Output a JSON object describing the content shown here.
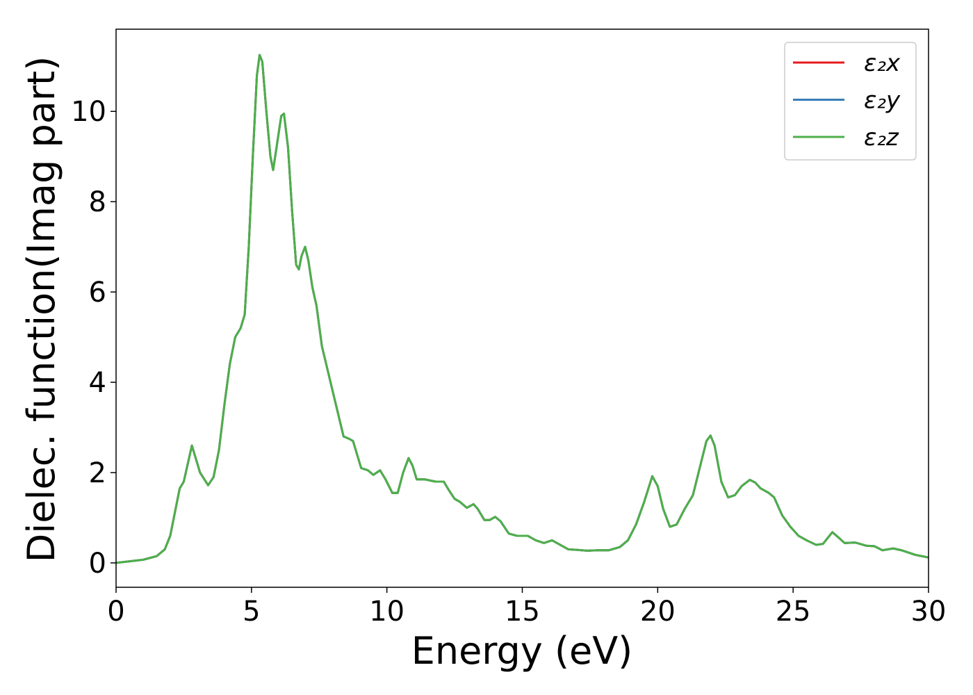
{
  "chart_data": {
    "type": "line",
    "xlabel": "Energy (eV)",
    "ylabel": "Dielec. function(Imag part)",
    "x": [
      0,
      1.0,
      1.5,
      1.8,
      2.0,
      2.2,
      2.35,
      2.5,
      2.65,
      2.8,
      2.95,
      3.1,
      3.4,
      3.6,
      3.8,
      4.0,
      4.2,
      4.4,
      4.6,
      4.75,
      4.9,
      5.05,
      5.2,
      5.3,
      5.4,
      5.55,
      5.7,
      5.8,
      5.95,
      6.1,
      6.2,
      6.35,
      6.5,
      6.65,
      6.75,
      6.85,
      6.98,
      7.1,
      7.25,
      7.4,
      7.6,
      7.8,
      8.0,
      8.2,
      8.4,
      8.6,
      8.75,
      8.9,
      9.05,
      9.3,
      9.5,
      9.75,
      9.95,
      10.2,
      10.4,
      10.6,
      10.8,
      10.95,
      11.1,
      11.4,
      11.8,
      12.1,
      12.3,
      12.5,
      12.7,
      12.95,
      13.2,
      13.35,
      13.6,
      13.8,
      14.0,
      14.2,
      14.5,
      14.8,
      15.2,
      15.5,
      15.8,
      16.1,
      16.4,
      16.7,
      17.0,
      17.4,
      17.8,
      18.2,
      18.6,
      18.9,
      19.2,
      19.5,
      19.8,
      20.0,
      20.2,
      20.45,
      20.7,
      21.0,
      21.3,
      21.55,
      21.8,
      21.95,
      22.1,
      22.35,
      22.6,
      22.85,
      23.1,
      23.4,
      23.6,
      23.8,
      24.1,
      24.3,
      24.6,
      24.9,
      25.2,
      25.5,
      25.85,
      26.1,
      26.45,
      26.7,
      26.9,
      27.3,
      27.7,
      28.0,
      28.3,
      28.7,
      29.0,
      29.5,
      30.0
    ],
    "series": [
      {
        "name": "ε₂x",
        "color": "#e41a1c",
        "values": [
          0,
          0.07,
          0.15,
          0.3,
          0.6,
          1.2,
          1.65,
          1.8,
          2.2,
          2.6,
          2.3,
          2.0,
          1.72,
          1.9,
          2.5,
          3.5,
          4.4,
          5.0,
          5.2,
          5.5,
          7.0,
          9.0,
          10.8,
          11.25,
          11.1,
          10.0,
          9.0,
          8.7,
          9.3,
          9.9,
          9.95,
          9.2,
          7.8,
          6.6,
          6.5,
          6.8,
          7.0,
          6.7,
          6.1,
          5.7,
          4.8,
          4.3,
          3.8,
          3.3,
          2.8,
          2.75,
          2.7,
          2.4,
          2.1,
          2.05,
          1.95,
          2.05,
          1.85,
          1.55,
          1.55,
          2.0,
          2.32,
          2.15,
          1.85,
          1.85,
          1.8,
          1.8,
          1.6,
          1.42,
          1.35,
          1.22,
          1.3,
          1.2,
          0.95,
          0.95,
          1.02,
          0.92,
          0.65,
          0.6,
          0.6,
          0.5,
          0.44,
          0.5,
          0.4,
          0.3,
          0.29,
          0.27,
          0.28,
          0.28,
          0.35,
          0.5,
          0.85,
          1.35,
          1.92,
          1.7,
          1.2,
          0.8,
          0.85,
          1.2,
          1.5,
          2.1,
          2.7,
          2.82,
          2.6,
          1.8,
          1.45,
          1.5,
          1.7,
          1.84,
          1.78,
          1.65,
          1.55,
          1.45,
          1.05,
          0.8,
          0.6,
          0.5,
          0.4,
          0.42,
          0.68,
          0.55,
          0.44,
          0.45,
          0.38,
          0.37,
          0.28,
          0.32,
          0.28,
          0.18,
          0.12
        ]
      },
      {
        "name": "ε₂y",
        "color": "#377eb8",
        "values": [
          0,
          0.07,
          0.15,
          0.3,
          0.6,
          1.2,
          1.65,
          1.8,
          2.2,
          2.6,
          2.3,
          2.0,
          1.72,
          1.9,
          2.5,
          3.5,
          4.4,
          5.0,
          5.2,
          5.5,
          7.0,
          9.0,
          10.8,
          11.25,
          11.1,
          10.0,
          9.0,
          8.7,
          9.3,
          9.9,
          9.95,
          9.2,
          7.8,
          6.6,
          6.5,
          6.8,
          7.0,
          6.7,
          6.1,
          5.7,
          4.8,
          4.3,
          3.8,
          3.3,
          2.8,
          2.75,
          2.7,
          2.4,
          2.1,
          2.05,
          1.95,
          2.05,
          1.85,
          1.55,
          1.55,
          2.0,
          2.32,
          2.15,
          1.85,
          1.85,
          1.8,
          1.8,
          1.6,
          1.42,
          1.35,
          1.22,
          1.3,
          1.2,
          0.95,
          0.95,
          1.02,
          0.92,
          0.65,
          0.6,
          0.6,
          0.5,
          0.44,
          0.5,
          0.4,
          0.3,
          0.29,
          0.27,
          0.28,
          0.28,
          0.35,
          0.5,
          0.85,
          1.35,
          1.92,
          1.7,
          1.2,
          0.8,
          0.85,
          1.2,
          1.5,
          2.1,
          2.7,
          2.82,
          2.6,
          1.8,
          1.45,
          1.5,
          1.7,
          1.84,
          1.78,
          1.65,
          1.55,
          1.45,
          1.05,
          0.8,
          0.6,
          0.5,
          0.4,
          0.42,
          0.68,
          0.55,
          0.44,
          0.45,
          0.38,
          0.37,
          0.28,
          0.32,
          0.28,
          0.18,
          0.12
        ]
      },
      {
        "name": "ε₂z",
        "color": "#4daf4a",
        "values": [
          0,
          0.07,
          0.15,
          0.3,
          0.6,
          1.2,
          1.65,
          1.8,
          2.2,
          2.6,
          2.3,
          2.0,
          1.72,
          1.9,
          2.5,
          3.5,
          4.4,
          5.0,
          5.2,
          5.5,
          7.0,
          9.0,
          10.8,
          11.25,
          11.1,
          10.0,
          9.0,
          8.7,
          9.3,
          9.9,
          9.95,
          9.2,
          7.8,
          6.6,
          6.5,
          6.8,
          7.0,
          6.7,
          6.1,
          5.7,
          4.8,
          4.3,
          3.8,
          3.3,
          2.8,
          2.75,
          2.7,
          2.4,
          2.1,
          2.05,
          1.95,
          2.05,
          1.85,
          1.55,
          1.55,
          2.0,
          2.32,
          2.15,
          1.85,
          1.85,
          1.8,
          1.8,
          1.6,
          1.42,
          1.35,
          1.22,
          1.3,
          1.2,
          0.95,
          0.95,
          1.02,
          0.92,
          0.65,
          0.6,
          0.6,
          0.5,
          0.44,
          0.5,
          0.4,
          0.3,
          0.29,
          0.27,
          0.28,
          0.28,
          0.35,
          0.5,
          0.85,
          1.35,
          1.92,
          1.7,
          1.2,
          0.8,
          0.85,
          1.2,
          1.5,
          2.1,
          2.7,
          2.82,
          2.6,
          1.8,
          1.45,
          1.5,
          1.7,
          1.84,
          1.78,
          1.65,
          1.55,
          1.45,
          1.05,
          0.8,
          0.6,
          0.5,
          0.4,
          0.42,
          0.68,
          0.55,
          0.44,
          0.45,
          0.38,
          0.37,
          0.28,
          0.32,
          0.28,
          0.18,
          0.12
        ]
      }
    ],
    "xlim": [
      0,
      30
    ],
    "xticks": [
      0,
      5,
      10,
      15,
      20,
      25,
      30
    ],
    "ylim": [
      -0.54,
      11.82
    ],
    "yticks": [
      0,
      2,
      4,
      6,
      8,
      10
    ],
    "grid": false,
    "legend": "upper right"
  }
}
